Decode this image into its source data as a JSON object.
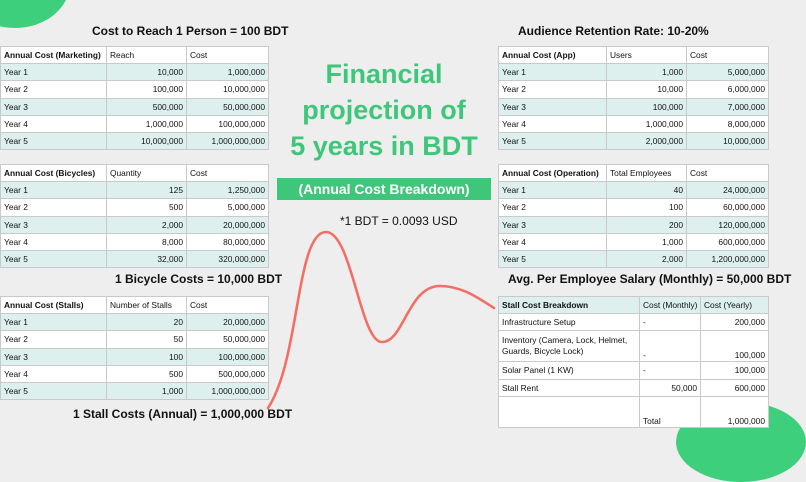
{
  "colors": {
    "accent": "#3ec77a",
    "row_alt": "#ddf0ee",
    "curve": "#f26f66"
  },
  "slide": {
    "title_lines": [
      "Financial",
      "projection of",
      "5 years in BDT"
    ],
    "badge": "(Annual Cost Breakdown)",
    "exchange_note": "*1 BDT = 0.0093 USD"
  },
  "headings": {
    "marketing": "Cost to Reach 1 Person  = 100 BDT",
    "bicycle": "1 Bicycle Costs  = 10,000 BDT",
    "stall": "1 Stall Costs (Annual) = 1,000,000 BDT",
    "retention": "Audience Retention Rate: 10-20%",
    "salary": "Avg. Per Employee Salary (Monthly) = 50,000 BDT"
  },
  "tables": {
    "marketing": {
      "headers": [
        "Annual Cost (Marketing)",
        "Reach",
        "Cost"
      ],
      "rows": [
        [
          "Year 1",
          "10,000",
          "1,000,000"
        ],
        [
          "Year 2",
          "100,000",
          "10,000,000"
        ],
        [
          "Year 3",
          "500,000",
          "50,000,000"
        ],
        [
          "Year 4",
          "1,000,000",
          "100,000,000"
        ],
        [
          "Year 5",
          "10,000,000",
          "1,000,000,000"
        ]
      ]
    },
    "bicycles": {
      "headers": [
        "Annual Cost (Bicycles)",
        "Quantity",
        "Cost"
      ],
      "rows": [
        [
          "Year 1",
          "125",
          "1,250,000"
        ],
        [
          "Year 2",
          "500",
          "5,000,000"
        ],
        [
          "Year 3",
          "2,000",
          "20,000,000"
        ],
        [
          "Year 4",
          "8,000",
          "80,000,000"
        ],
        [
          "Year 5",
          "32,000",
          "320,000,000"
        ]
      ]
    },
    "stalls": {
      "headers": [
        "Annual Cost (Stalls)",
        "Number of Stalls",
        "Cost"
      ],
      "rows": [
        [
          "Year 1",
          "20",
          "20,000,000"
        ],
        [
          "Year 2",
          "50",
          "50,000,000"
        ],
        [
          "Year 3",
          "100",
          "100,000,000"
        ],
        [
          "Year 4",
          "500",
          "500,000,000"
        ],
        [
          "Year 5",
          "1,000",
          "1,000,000,000"
        ]
      ]
    },
    "app": {
      "headers": [
        "Annual Cost (App)",
        "Users",
        "Cost"
      ],
      "rows": [
        [
          "Year 1",
          "1,000",
          "5,000,000"
        ],
        [
          "Year 2",
          "10,000",
          "6,000,000"
        ],
        [
          "Year 3",
          "100,000",
          "7,000,000"
        ],
        [
          "Year 4",
          "1,000,000",
          "8,000,000"
        ],
        [
          "Year 5",
          "2,000,000",
          "10,000,000"
        ]
      ]
    },
    "operation": {
      "headers": [
        "Annual Cost (Operation)",
        "Total Employees",
        "Cost"
      ],
      "rows": [
        [
          "Year 1",
          "40",
          "24,000,000"
        ],
        [
          "Year 2",
          "100",
          "60,000,000"
        ],
        [
          "Year 3",
          "200",
          "120,000,000"
        ],
        [
          "Year 4",
          "1,000",
          "600,000,000"
        ],
        [
          "Year 5",
          "2,000",
          "1,200,000,000"
        ]
      ]
    },
    "stall_breakdown": {
      "headers": [
        "Stall Cost Breakdown",
        "Cost (Monthly)",
        "Cost (Yearly)"
      ],
      "rows": [
        [
          "Infrastructure Setup",
          "-",
          "200,000"
        ],
        [
          "Inventory (Camera, Lock, Helmet, Guards, Bicycle Lock)",
          "-",
          "100,000"
        ],
        [
          "Solar Panel (1 KW)",
          "-",
          "100,000"
        ],
        [
          "Stall Rent",
          "50,000",
          "600,000"
        ],
        [
          "",
          "Total",
          "1,000,000"
        ]
      ]
    }
  }
}
